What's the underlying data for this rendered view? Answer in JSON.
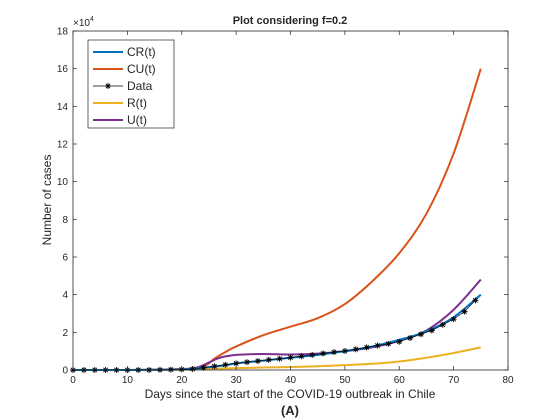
{
  "chart_data": {
    "type": "line",
    "title": "Plot considering f=0.2",
    "xlabel": "Days since the start of the COVID-19 outbreak in Chile",
    "ylabel": "Number of cases",
    "panel_label": "(A)",
    "y_exponent_label": "×10",
    "y_exponent_power": "4",
    "xlim": [
      0,
      80
    ],
    "ylim": [
      0,
      180000
    ],
    "x_ticks": [
      0,
      10,
      20,
      30,
      40,
      50,
      60,
      70,
      80
    ],
    "x_tick_labels": [
      "0",
      "10",
      "20",
      "30",
      "40",
      "50",
      "60",
      "70",
      "80"
    ],
    "y_ticks": [
      0,
      20000,
      40000,
      60000,
      80000,
      100000,
      120000,
      140000,
      160000,
      180000
    ],
    "y_tick_labels": [
      "0",
      "2",
      "4",
      "6",
      "8",
      "10",
      "12",
      "14",
      "16",
      "18"
    ],
    "grid": false,
    "legend_position": "top-left",
    "series": [
      {
        "name": "CR(t)",
        "color": "#0072BD",
        "marker": "none",
        "x": [
          0,
          5,
          10,
          15,
          20,
          22,
          25,
          28,
          30,
          35,
          40,
          45,
          50,
          55,
          60,
          65,
          70,
          75
        ],
        "values": [
          0,
          0,
          0,
          100,
          300,
          600,
          1500,
          2500,
          3500,
          5000,
          6500,
          8000,
          10000,
          12500,
          16000,
          20500,
          28000,
          40000
        ]
      },
      {
        "name": "CU(t)",
        "color": "#D95319",
        "marker": "none",
        "x": [
          0,
          10,
          20,
          24,
          26,
          28,
          30,
          35,
          40,
          45,
          50,
          55,
          60,
          65,
          70,
          75
        ],
        "values": [
          0,
          0,
          500,
          2000,
          6000,
          9500,
          12500,
          18500,
          23000,
          27500,
          35000,
          47000,
          62000,
          83000,
          115000,
          160000
        ]
      },
      {
        "name": "Data",
        "color": "#000000",
        "marker": "asterisk",
        "x": [
          0,
          2,
          4,
          6,
          8,
          10,
          12,
          14,
          16,
          18,
          20,
          22,
          24,
          26,
          28,
          30,
          32,
          34,
          36,
          38,
          40,
          42,
          44,
          46,
          48,
          50,
          52,
          54,
          56,
          58,
          60,
          62,
          64,
          66,
          68,
          70,
          72,
          74
        ],
        "values": [
          0,
          0,
          0,
          0,
          0,
          0,
          0,
          0,
          100,
          200,
          300,
          500,
          1200,
          2000,
          2800,
          3500,
          4200,
          4800,
          5400,
          6000,
          6600,
          7300,
          8000,
          8800,
          9500,
          10100,
          11000,
          12000,
          13000,
          13900,
          15000,
          17000,
          19000,
          21000,
          24000,
          27000,
          31000,
          37000
        ]
      },
      {
        "name": "R(t)",
        "color": "#EDB120",
        "marker": "none",
        "x": [
          0,
          10,
          20,
          25,
          30,
          35,
          40,
          45,
          50,
          55,
          60,
          65,
          70,
          75
        ],
        "values": [
          0,
          0,
          200,
          600,
          1000,
          1300,
          1600,
          2000,
          2600,
          3300,
          4500,
          6500,
          9000,
          12000
        ]
      },
      {
        "name": "U(t)",
        "color": "#7E2F8E",
        "marker": "none",
        "x": [
          0,
          10,
          20,
          23,
          25,
          27,
          30,
          35,
          40,
          45,
          50,
          55,
          60,
          65,
          70,
          75
        ],
        "values": [
          0,
          0,
          400,
          1500,
          4000,
          6500,
          8000,
          8500,
          8200,
          8700,
          10000,
          12000,
          15500,
          21000,
          32000,
          48000
        ]
      }
    ]
  }
}
